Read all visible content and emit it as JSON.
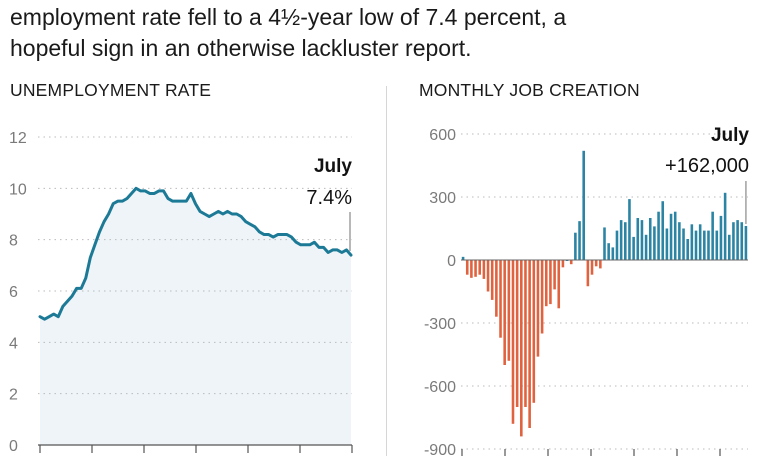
{
  "intro": {
    "line1": "employment rate fell to a 4½-year low of 7.4 percent, a",
    "line2": "hopeful sign in an otherwise lackluster report."
  },
  "colors": {
    "line": "#1c7a96",
    "area": "#eef4f8",
    "positive": "#2b84a3",
    "negative": "#e0623f",
    "grid": "#bbbbbb"
  },
  "chart_data": [
    {
      "type": "area",
      "title": "UNEMPLOYMENT RATE",
      "ylim": [
        0,
        12
      ],
      "yticks": [
        0,
        2,
        4,
        6,
        8,
        10,
        12
      ],
      "grid": true,
      "annotation": {
        "label": "July",
        "value": "7.4%"
      },
      "values": [
        5.0,
        4.9,
        5.0,
        5.1,
        5.0,
        5.4,
        5.6,
        5.8,
        6.1,
        6.1,
        6.5,
        7.3,
        7.8,
        8.3,
        8.7,
        9.0,
        9.4,
        9.5,
        9.5,
        9.6,
        9.8,
        10.0,
        9.9,
        9.9,
        9.8,
        9.8,
        9.9,
        9.9,
        9.6,
        9.5,
        9.5,
        9.5,
        9.5,
        9.8,
        9.4,
        9.1,
        9.0,
        8.9,
        9.0,
        9.1,
        9.0,
        9.1,
        9.0,
        9.0,
        8.9,
        8.7,
        8.6,
        8.5,
        8.3,
        8.2,
        8.2,
        8.1,
        8.2,
        8.2,
        8.2,
        8.1,
        7.9,
        7.8,
        7.8,
        7.8,
        7.9,
        7.7,
        7.7,
        7.5,
        7.6,
        7.6,
        7.5,
        7.6,
        7.4
      ]
    },
    {
      "type": "bar",
      "title": "MONTHLY JOB CREATION",
      "ylim": [
        -900,
        600
      ],
      "yticks": [
        600,
        300,
        0,
        -300,
        -600,
        -900
      ],
      "grid": true,
      "annotation": {
        "label": "July",
        "value": "+162,000"
      },
      "values": [
        15,
        -70,
        -85,
        -80,
        -70,
        -90,
        -150,
        -190,
        -270,
        -370,
        -500,
        -480,
        -780,
        -700,
        -840,
        -700,
        -800,
        -680,
        -460,
        -350,
        -220,
        -210,
        -140,
        -230,
        -35,
        0,
        -20,
        130,
        185,
        520,
        -125,
        -70,
        -30,
        -40,
        155,
        80,
        60,
        140,
        190,
        180,
        290,
        110,
        200,
        190,
        120,
        200,
        160,
        230,
        280,
        150,
        220,
        230,
        180,
        150,
        100,
        170,
        140,
        170,
        140,
        140,
        230,
        140,
        210,
        320,
        120,
        180,
        190,
        180,
        162
      ]
    }
  ]
}
